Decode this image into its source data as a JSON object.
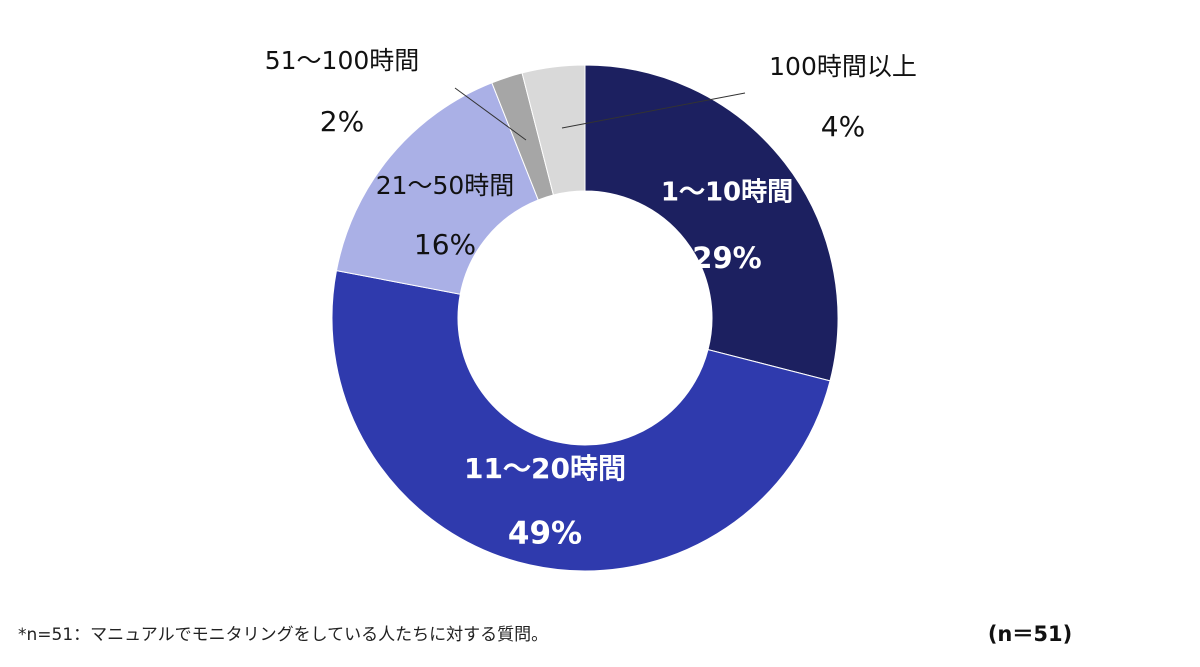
{
  "chart_data": {
    "type": "donut",
    "categories": [
      "1〜10時間",
      "11〜20時間",
      "21〜50時間",
      "51〜100時間",
      "100時間以上"
    ],
    "values": [
      29,
      49,
      16,
      2,
      4
    ],
    "value_labels": [
      "29%",
      "49%",
      "16%",
      "2%",
      "4%"
    ],
    "colors": [
      "#1c2060",
      "#2f3aad",
      "#aab0e6",
      "#a6a6a6",
      "#d9d9d9"
    ],
    "note": "*n=51：マニュアルでモニタリングをしている人たちに対する質問。",
    "sample_label": "(n＝51)"
  }
}
